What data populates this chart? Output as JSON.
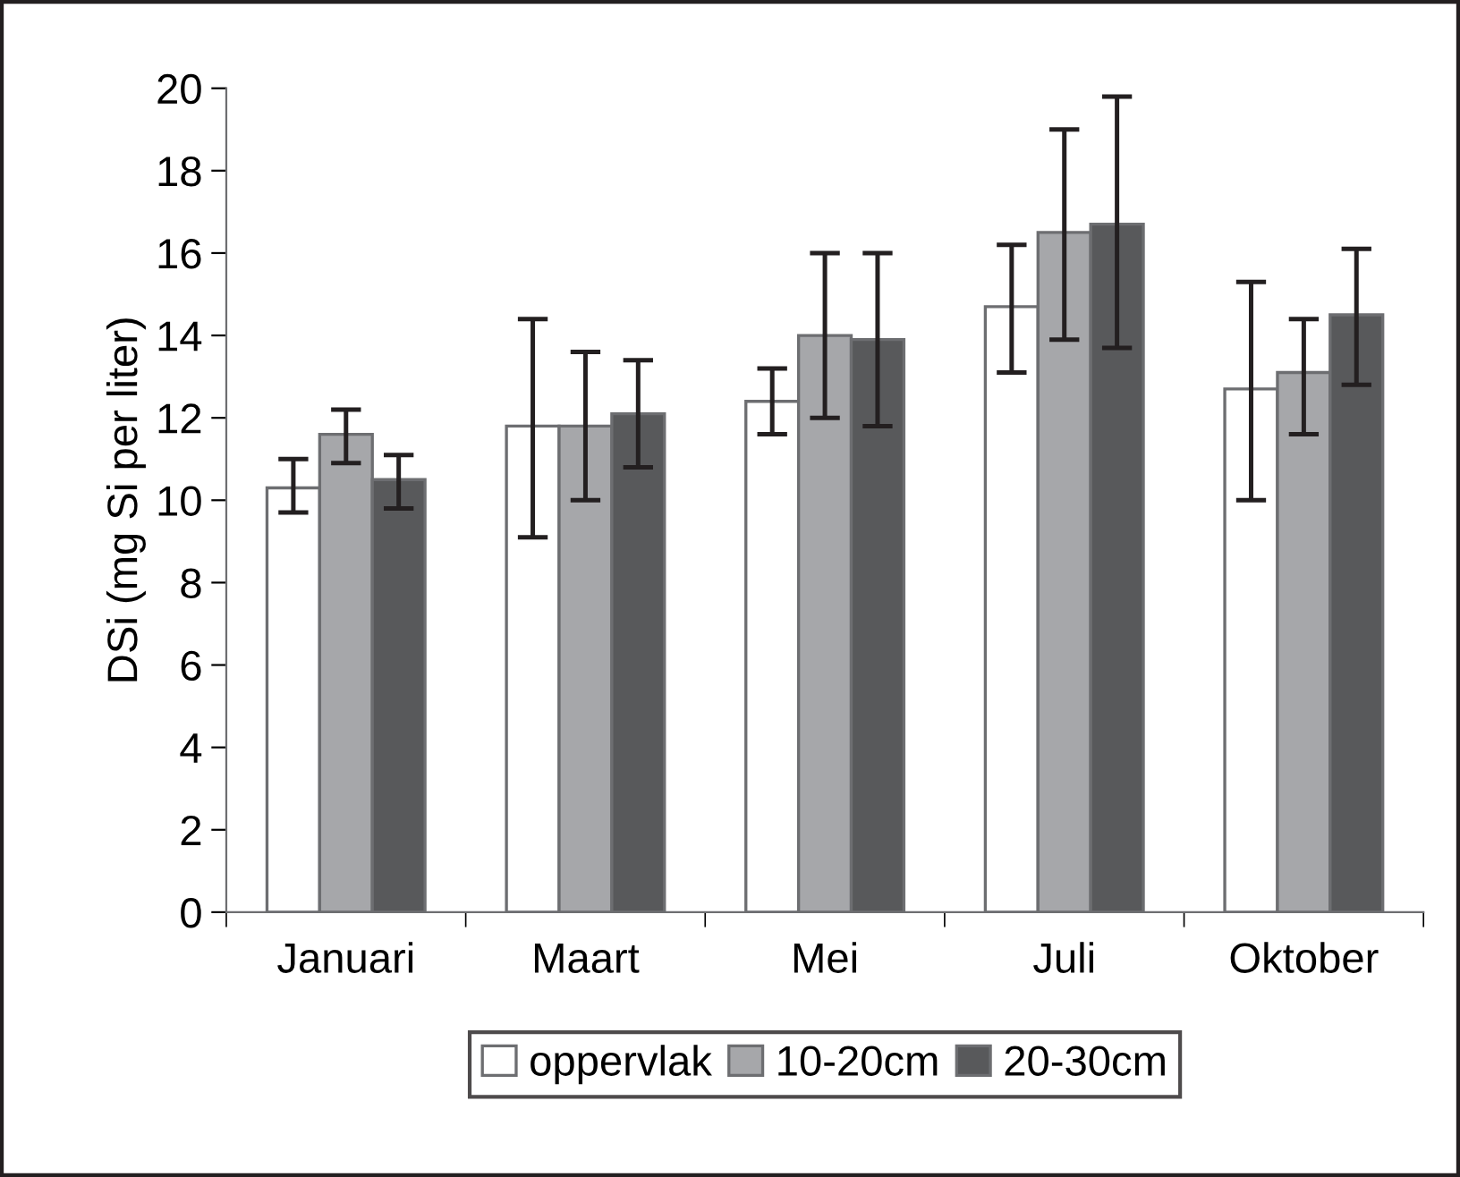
{
  "chart_data": {
    "type": "bar",
    "ylabel": "DSi (mg Si per liter)",
    "categories": [
      "Januari",
      "Maart",
      "Mei",
      "Juli",
      "Oktober"
    ],
    "series": [
      {
        "name": "oppervlak",
        "color": "#ffffff",
        "values": [
          10.3,
          11.8,
          12.4,
          14.7,
          12.7
        ],
        "errors": [
          [
            9.7,
            11.0
          ],
          [
            9.1,
            14.4
          ],
          [
            11.6,
            13.2
          ],
          [
            13.1,
            16.2
          ],
          [
            10.0,
            15.3
          ]
        ]
      },
      {
        "name": "10-20cm",
        "color": "#a6a7aa",
        "values": [
          11.6,
          11.8,
          14.0,
          16.5,
          13.1
        ],
        "errors": [
          [
            10.9,
            12.2
          ],
          [
            10.0,
            13.6
          ],
          [
            12.0,
            16.0
          ],
          [
            13.9,
            19.0
          ],
          [
            11.6,
            14.4
          ]
        ]
      },
      {
        "name": "20-30cm",
        "color": "#58595b",
        "values": [
          10.5,
          12.1,
          13.9,
          16.7,
          14.5
        ],
        "errors": [
          [
            9.8,
            11.1
          ],
          [
            10.8,
            13.4
          ],
          [
            11.8,
            16.0
          ],
          [
            13.7,
            19.8
          ],
          [
            12.8,
            16.1
          ]
        ]
      }
    ],
    "ylim": [
      0,
      20
    ],
    "yticks": [
      0,
      2,
      4,
      6,
      8,
      10,
      12,
      14,
      16,
      18,
      20
    ],
    "grid": false,
    "legend": "bottom"
  }
}
